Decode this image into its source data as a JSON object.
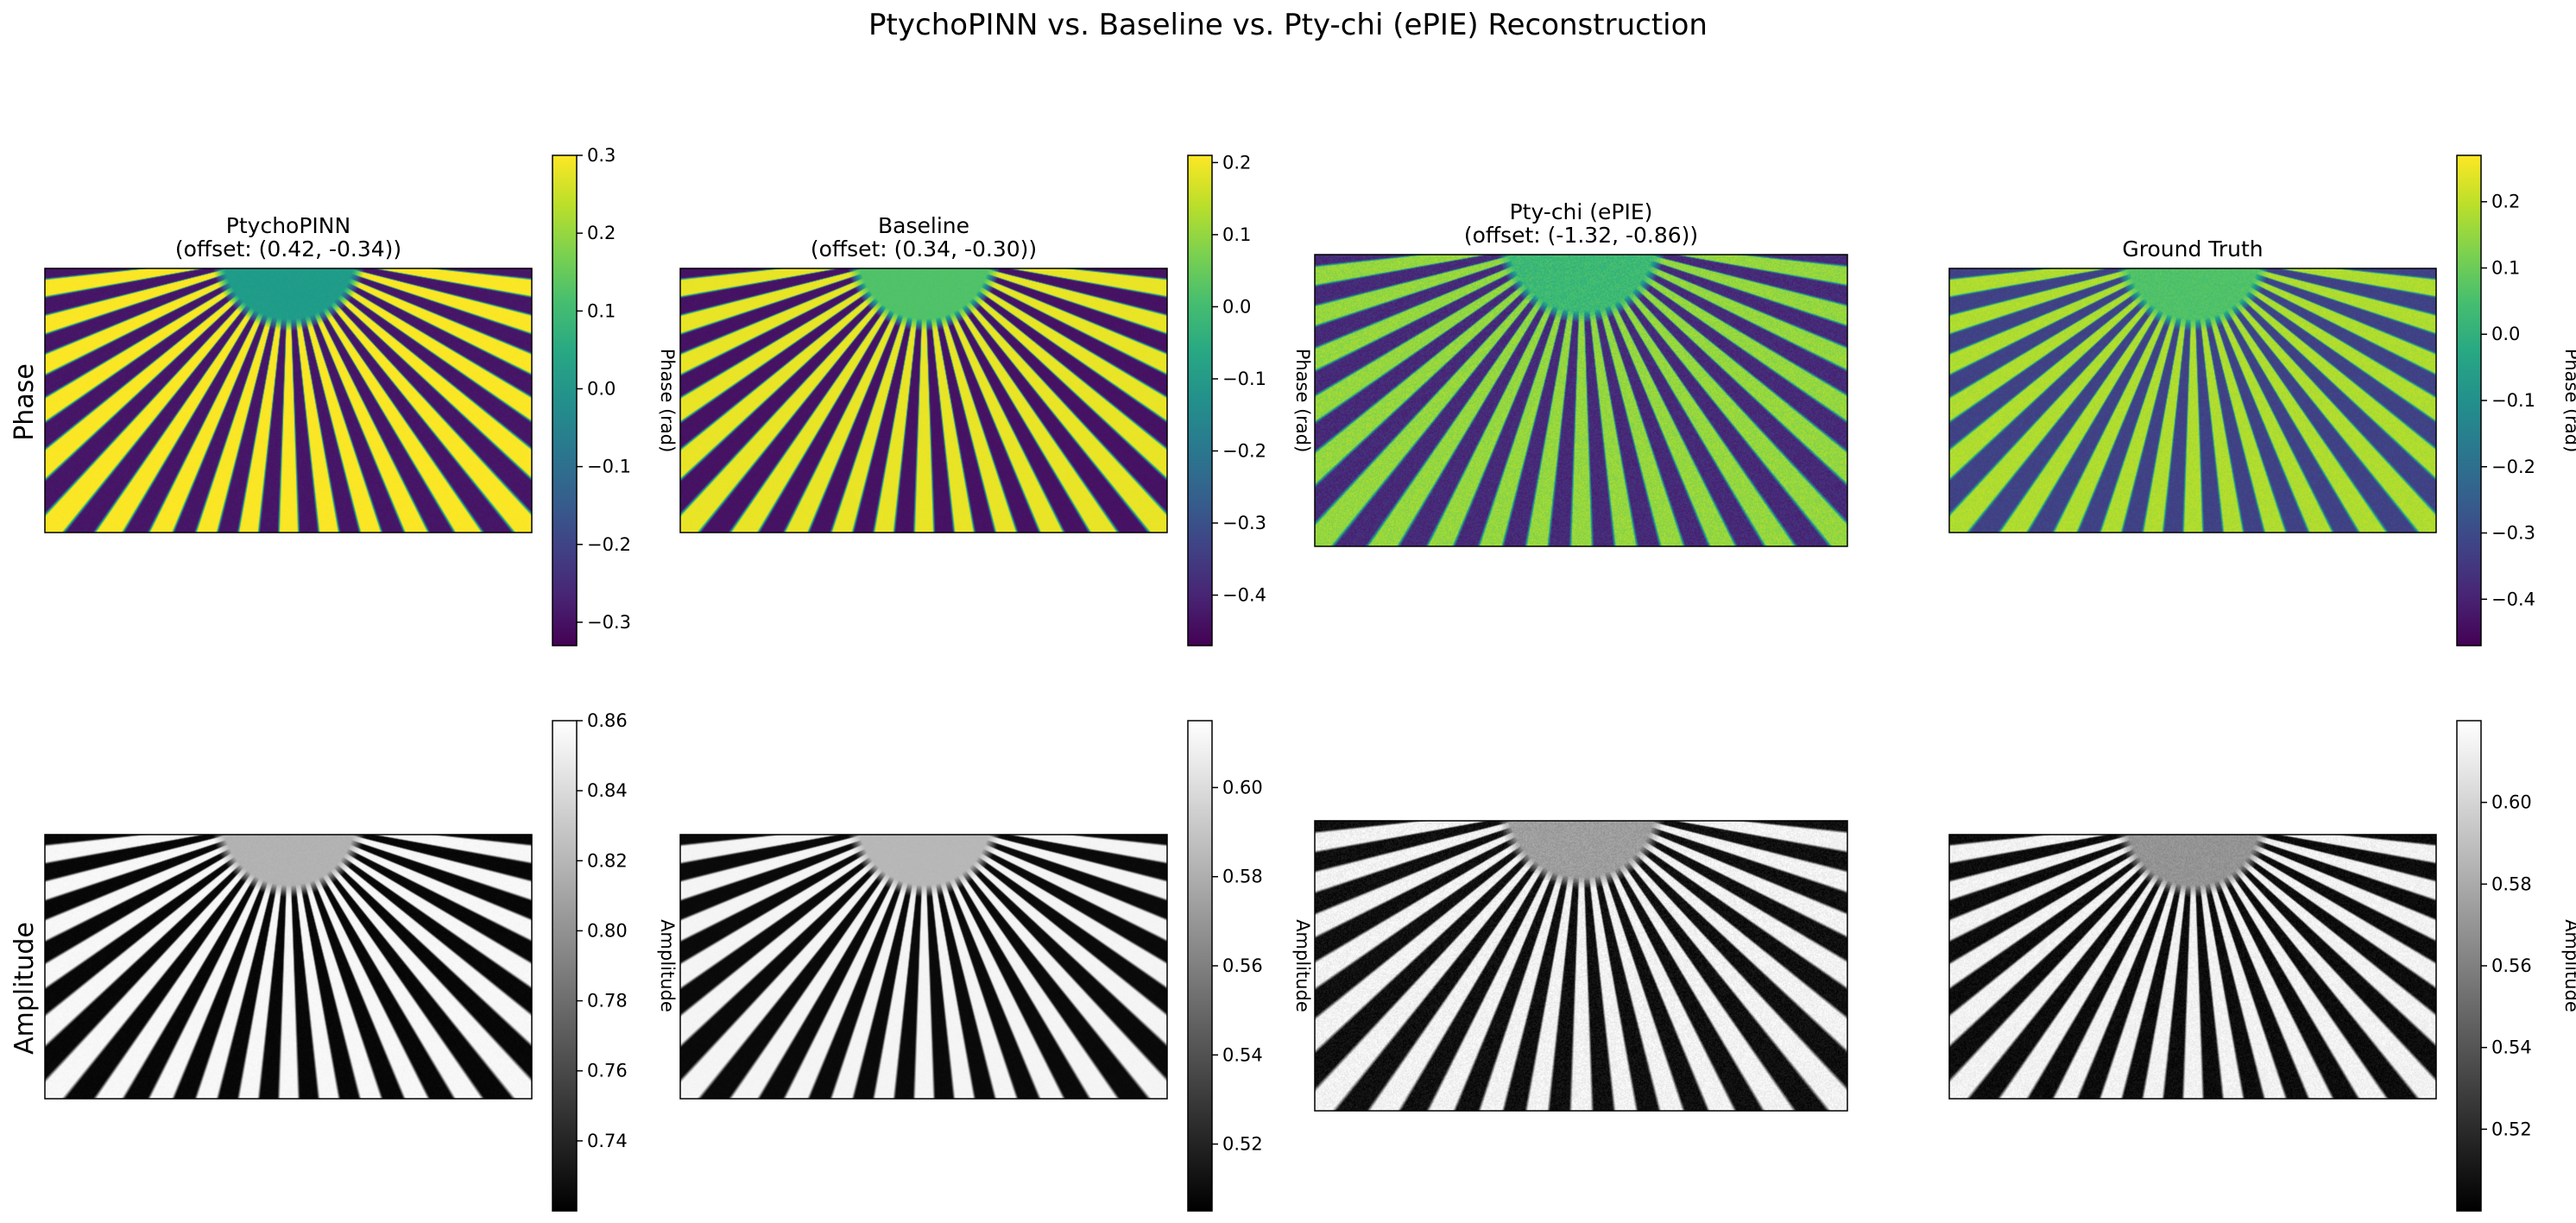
{
  "figure": {
    "title": "PtychoPINN vs. Baseline vs. Pty-chi (ePIE) Reconstruction",
    "row_labels": [
      "Phase",
      "Amplitude"
    ]
  },
  "chart_data": [
    {
      "type": "heatmap",
      "row": "Phase",
      "column": 0,
      "colormap": "viridis",
      "title": [
        "PtychoPINN",
        "(offset: (0.42, -0.34))"
      ],
      "colorbar": {
        "label": "Phase (rad)",
        "range": [
          -0.33,
          0.3
        ],
        "ticks": [
          0.3,
          0.2,
          0.1,
          0.0,
          -0.1,
          -0.2,
          -0.3
        ],
        "tick_labels": [
          "0.3",
          "0.2",
          "0.1",
          "0.0",
          "−0.1",
          "−0.2",
          "−0.3"
        ]
      },
      "hi": 1.0,
      "lo": 0.06,
      "hub": 0.55,
      "ring": 0.0,
      "noise": 0.03
    },
    {
      "type": "heatmap",
      "row": "Phase",
      "column": 1,
      "colormap": "viridis",
      "title": [
        "Baseline",
        "(offset: (0.34, -0.30))"
      ],
      "colorbar": {
        "label": "Phase (rad)",
        "range": [
          -0.47,
          0.21
        ],
        "ticks": [
          0.2,
          0.1,
          0.0,
          -0.1,
          -0.2,
          -0.3,
          -0.4
        ],
        "tick_labels": [
          "0.2",
          "0.1",
          "0.0",
          "−0.1",
          "−0.2",
          "−0.3",
          "−0.4"
        ]
      },
      "hi": 0.97,
      "lo": 0.05,
      "hub": 0.72,
      "ring": 0.0,
      "noise": 0.02
    },
    {
      "type": "heatmap",
      "row": "Phase",
      "column": 2,
      "colormap": "viridis",
      "title": [
        "Pty-chi (ePIE)",
        "(offset: (-1.32, -0.86))"
      ],
      "colorbar": null,
      "hi": 0.84,
      "lo": 0.12,
      "hub": 0.68,
      "ring": 0.35,
      "noise": 0.1
    },
    {
      "type": "heatmap",
      "row": "Phase",
      "column": 3,
      "colormap": "viridis",
      "title": [
        "Ground Truth"
      ],
      "colorbar": {
        "label": "Phase (rad)",
        "range": [
          -0.47,
          0.27
        ],
        "ticks": [
          0.2,
          0.1,
          0.0,
          -0.1,
          -0.2,
          -0.3,
          -0.4
        ],
        "tick_labels": [
          "0.2",
          "0.1",
          "0.0",
          "−0.1",
          "−0.2",
          "−0.3",
          "−0.4"
        ]
      },
      "hi": 0.88,
      "lo": 0.2,
      "hub": 0.72,
      "ring": 0.35,
      "noise": 0.06
    },
    {
      "type": "heatmap",
      "row": "Amplitude",
      "column": 0,
      "colormap": "gray",
      "title": [],
      "colorbar": {
        "label": "Amplitude",
        "range": [
          0.72,
          0.86
        ],
        "ticks": [
          0.86,
          0.84,
          0.82,
          0.8,
          0.78,
          0.76,
          0.74
        ],
        "tick_labels": [
          "0.86",
          "0.84",
          "0.82",
          "0.80",
          "0.78",
          "0.76",
          "0.74"
        ]
      },
      "hi": 0.97,
      "lo": 0.03,
      "hub": 0.7,
      "ring": 0.0,
      "noise": 0.03
    },
    {
      "type": "heatmap",
      "row": "Amplitude",
      "column": 1,
      "colormap": "gray",
      "title": [],
      "colorbar": {
        "label": "Amplitude",
        "range": [
          0.505,
          0.615
        ],
        "ticks": [
          0.6,
          0.58,
          0.56,
          0.54,
          0.52
        ],
        "tick_labels": [
          "0.60",
          "0.58",
          "0.56",
          "0.54",
          "0.52"
        ]
      },
      "hi": 0.96,
      "lo": 0.04,
      "hub": 0.72,
      "ring": 0.0,
      "noise": 0.02
    },
    {
      "type": "heatmap",
      "row": "Amplitude",
      "column": 2,
      "colormap": "gray",
      "title": [],
      "colorbar": null,
      "hi": 0.95,
      "lo": 0.06,
      "hub": 0.62,
      "ring": 0.25,
      "noise": 0.12
    },
    {
      "type": "heatmap",
      "row": "Amplitude",
      "column": 3,
      "colormap": "gray",
      "title": [],
      "colorbar": {
        "label": "Amplitude",
        "range": [
          0.5,
          0.62
        ],
        "ticks": [
          0.6,
          0.58,
          0.56,
          0.54,
          0.52
        ],
        "tick_labels": [
          "0.60",
          "0.58",
          "0.56",
          "0.54",
          "0.52"
        ]
      },
      "hi": 0.95,
      "lo": 0.05,
      "hub": 0.58,
      "ring": 0.25,
      "noise": 0.1
    }
  ]
}
